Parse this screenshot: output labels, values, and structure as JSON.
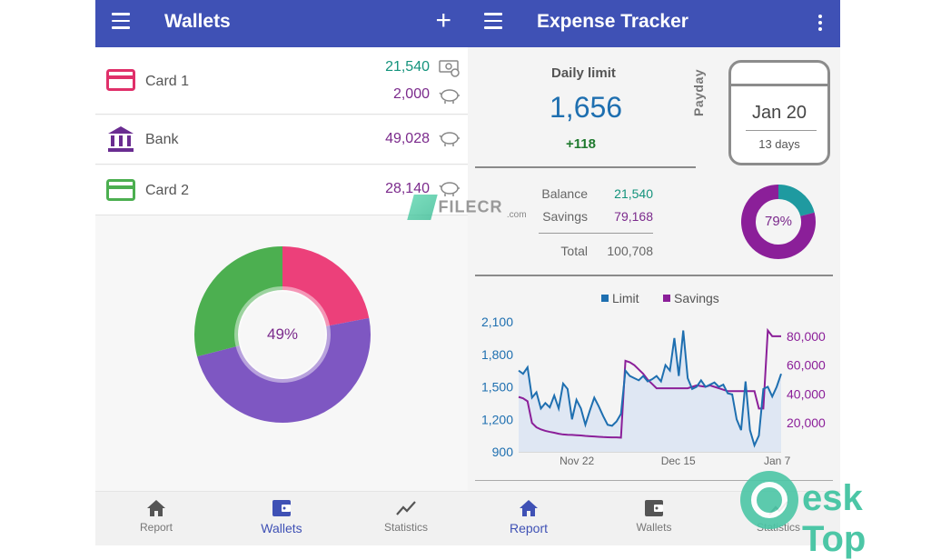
{
  "left": {
    "title": "Wallets",
    "add_label": "+",
    "wallets": [
      {
        "name": "Card 1",
        "icon": "credit-card-icon",
        "color": "#e0306a",
        "amount": "21,540",
        "amount_icon": "cash-icon",
        "savings": "2,000",
        "savings_icon": "piggy-bank-icon"
      },
      {
        "name": "Bank",
        "icon": "bank-icon",
        "color": "#6a2c91",
        "amount": "49,028",
        "amount_icon": "piggy-bank-icon"
      },
      {
        "name": "Card 2",
        "icon": "credit-card-icon",
        "color": "#4caf50",
        "amount": "28,140",
        "amount_icon": "piggy-bank-icon"
      }
    ],
    "donut": {
      "label": "49%",
      "segments": [
        {
          "name": "Card 1",
          "value": 22,
          "color": "#ec407a"
        },
        {
          "name": "Bank",
          "value": 49,
          "color": "#7e57c2"
        },
        {
          "name": "Card 2",
          "value": 29,
          "color": "#4caf50"
        }
      ]
    },
    "nav": [
      {
        "label": "Report",
        "icon": "home-icon",
        "active": false
      },
      {
        "label": "Wallets",
        "icon": "wallet-icon",
        "active": true
      },
      {
        "label": "Statistics",
        "icon": "chart-line-icon",
        "active": false
      }
    ]
  },
  "right": {
    "title": "Expense Tracker",
    "daily_limit_label": "Daily limit",
    "daily_limit_value": "1,656",
    "daily_limit_delta": "+118",
    "payday_label": "Payday",
    "payday_date": "Jan 20",
    "payday_days": "13 days",
    "balance_label": "Balance",
    "balance_value": "21,540",
    "savings_label": "Savings",
    "savings_value": "79,168",
    "total_label": "Total",
    "total_value": "100,708",
    "ratio_label": "79%",
    "ratio_value": 0.79,
    "nav": [
      {
        "label": "Report",
        "icon": "home-icon",
        "active": true
      },
      {
        "label": "Wallets",
        "icon": "wallet-icon",
        "active": false
      },
      {
        "label": "Statistics",
        "icon": "chart-line-icon",
        "active": false
      }
    ]
  },
  "colors": {
    "appbar": "#3f51b5",
    "limit_series": "#1e6fb0",
    "savings_series": "#8b1f99",
    "teal": "#14937c",
    "purple": "#7b2a8c"
  },
  "chart_data": {
    "type": "line",
    "legend_position": "top",
    "series": [
      {
        "name": "Limit",
        "axis": "left",
        "color": "#1e6fb0",
        "values": [
          1650,
          1620,
          1680,
          1400,
          1450,
          1300,
          1350,
          1310,
          1420,
          1300,
          1530,
          1480,
          1200,
          1380,
          1300,
          1150,
          1280,
          1400,
          1320,
          1230,
          1150,
          1140,
          1180,
          1250,
          1650,
          1600,
          1580,
          1560,
          1600,
          1550,
          1570,
          1600,
          1550,
          1700,
          1650,
          1950,
          1600,
          2020,
          1580,
          1480,
          1500,
          1560,
          1500,
          1520,
          1540,
          1500,
          1520,
          1440,
          1430,
          1200,
          1100,
          1550,
          1100,
          960,
          1050,
          1480,
          1500,
          1410,
          1500,
          1620
        ]
      },
      {
        "name": "Savings",
        "axis": "right",
        "color": "#8b1f99",
        "values": [
          38000,
          37000,
          35000,
          20000,
          17000,
          15500,
          14500,
          13800,
          13200,
          12500,
          12000,
          11800,
          11700,
          11500,
          11300,
          11000,
          10800,
          10600,
          10400,
          10200,
          10100,
          10000,
          10000,
          9800,
          63000,
          62000,
          60000,
          57000,
          54000,
          50000,
          47000,
          44000,
          44000,
          44000,
          44000,
          44000,
          44000,
          44000,
          44000,
          45000,
          46000,
          45500,
          45000,
          46000,
          45000,
          44000,
          43000,
          42000,
          42000,
          42000,
          42000,
          42000,
          42000,
          42000,
          30000,
          30000,
          84000,
          80000,
          80000,
          80000
        ]
      }
    ],
    "x_ticks": [
      "Nov 22",
      "Dec 15",
      "Jan 7"
    ],
    "y_left_ticks": [
      "2,100",
      "1,800",
      "1,500",
      "1,200",
      "900"
    ],
    "y_right_ticks": [
      "80,000",
      "60,000",
      "40,000",
      "20,000"
    ],
    "y_left_range": [
      900,
      2100
    ],
    "y_right_range": [
      0,
      90000
    ]
  },
  "watermarks": {
    "filecr": "FILECR",
    "filecr_sub": ".com",
    "desktop": "esk Top"
  }
}
